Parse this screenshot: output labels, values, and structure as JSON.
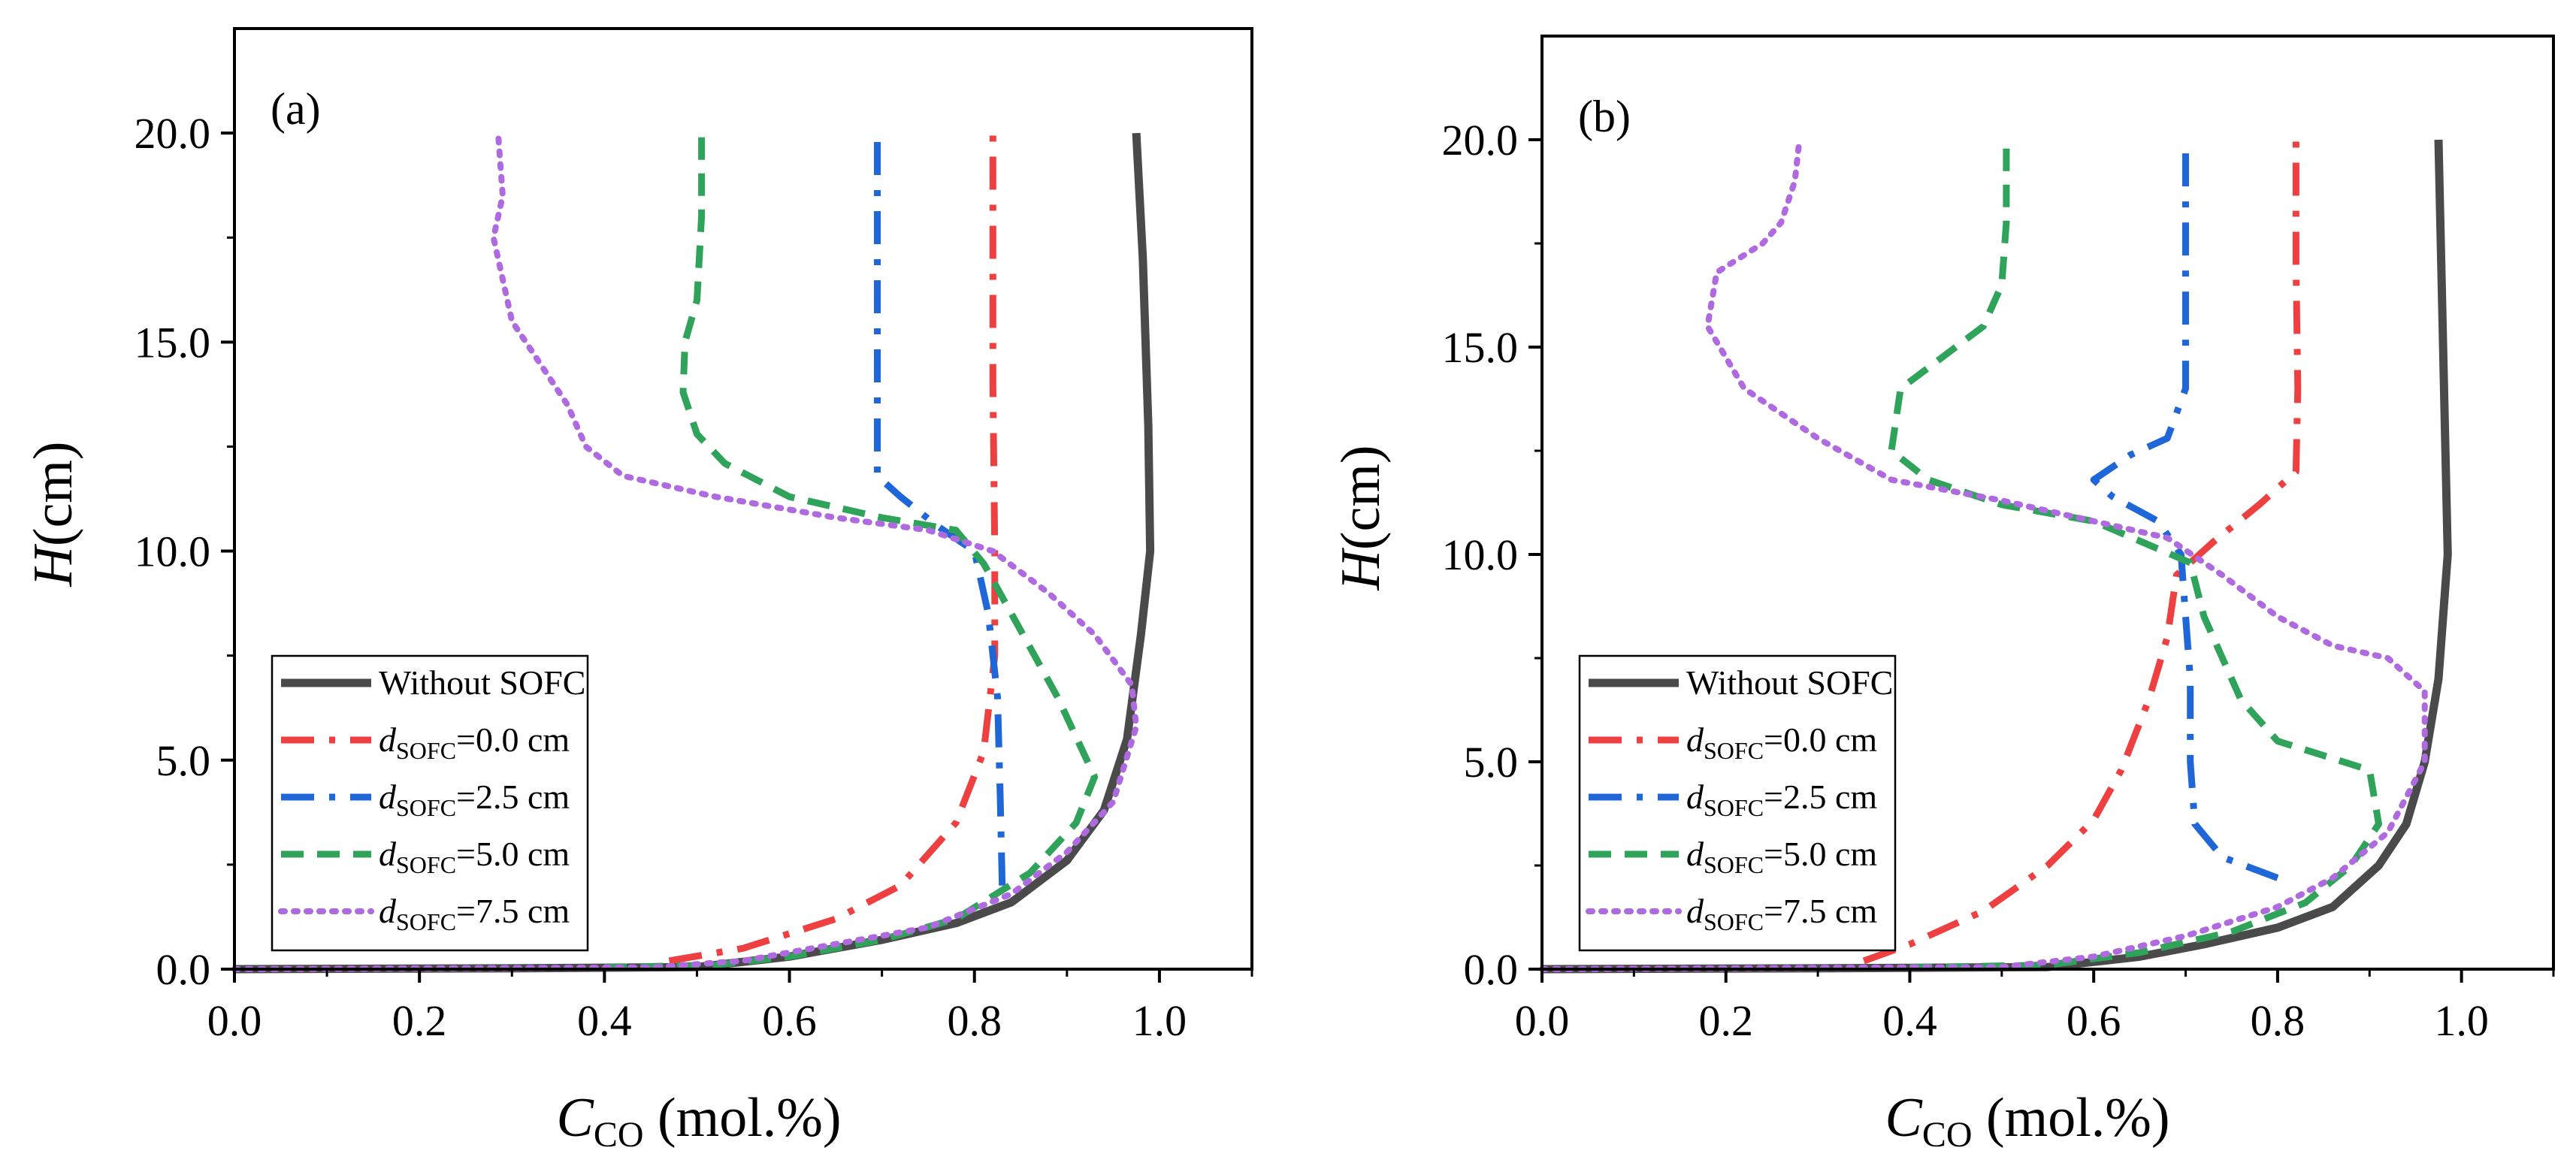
{
  "figure": {
    "colors": {
      "without": "#4a4a4a",
      "d0": "#ee4040",
      "d25": "#1f67d8",
      "d50": "#2fa35a",
      "d75": "#b06ae0"
    }
  },
  "chart_data": [
    {
      "type": "line",
      "panel_label": "(a)",
      "xlabel_main": "C",
      "xlabel_sub": "CO",
      "xlabel_unit": " (mol.%)",
      "ylabel_main": "H",
      "ylabel_unit": "(cm)",
      "xlim": [
        0,
        1.1
      ],
      "ylim": [
        0,
        22.5
      ],
      "xticks": [
        "0.0",
        "0.2",
        "0.4",
        "0.6",
        "0.8",
        "1.0"
      ],
      "yticks": [
        "0.0",
        "5.0",
        "10.0",
        "15.0",
        "20.0"
      ],
      "legend": [
        {
          "key": "without",
          "style": "solid",
          "text": "Without SOFC"
        },
        {
          "key": "d0",
          "style": "dashdot",
          "pre": "d",
          "sub": "SOFC",
          "post": "=0.0 cm"
        },
        {
          "key": "d25",
          "style": "dashdot",
          "pre": "d",
          "sub": "SOFC",
          "post": "=2.5 cm"
        },
        {
          "key": "d50",
          "style": "dash",
          "pre": "d",
          "sub": "SOFC",
          "post": "=5.0 cm"
        },
        {
          "key": "d75",
          "style": "dot",
          "pre": "d",
          "sub": "SOFC",
          "post": "=7.5 cm"
        }
      ],
      "series": [
        {
          "key": "without",
          "style": "solid",
          "name": "Without SOFC",
          "points": [
            [
              0,
              0
            ],
            [
              0.3,
              0.02
            ],
            [
              0.5,
              0.05
            ],
            [
              0.6,
              0.3
            ],
            [
              0.7,
              0.7
            ],
            [
              0.78,
              1.1
            ],
            [
              0.84,
              1.6
            ],
            [
              0.9,
              2.6
            ],
            [
              0.94,
              3.8
            ],
            [
              0.965,
              5.5
            ],
            [
              0.98,
              8
            ],
            [
              0.99,
              10
            ],
            [
              0.988,
              13
            ],
            [
              0.982,
              17
            ],
            [
              0.975,
              20
            ]
          ]
        },
        {
          "key": "d0",
          "style": "dashdot",
          "name": "d_SOFC=0.0 cm",
          "points": [
            [
              0.47,
              0.2
            ],
            [
              0.55,
              0.5
            ],
            [
              0.65,
              1.2
            ],
            [
              0.72,
              2
            ],
            [
              0.78,
              3.5
            ],
            [
              0.81,
              5.2
            ],
            [
              0.822,
              7.5
            ],
            [
              0.822,
              10
            ],
            [
              0.82,
              14
            ],
            [
              0.82,
              17
            ],
            [
              0.82,
              20
            ]
          ]
        },
        {
          "key": "d25",
          "style": "dashdot",
          "name": "d_SOFC=2.5 cm",
          "points": [
            [
              0.83,
              2
            ],
            [
              0.828,
              4
            ],
            [
              0.825,
              6.5
            ],
            [
              0.815,
              8.5
            ],
            [
              0.8,
              10
            ],
            [
              0.76,
              10.6
            ],
            [
              0.72,
              11.3
            ],
            [
              0.695,
              11.8
            ],
            [
              0.695,
              14
            ],
            [
              0.695,
              17
            ],
            [
              0.695,
              20
            ]
          ]
        },
        {
          "key": "d50",
          "style": "dash",
          "name": "d_SOFC=5.0 cm",
          "points": [
            [
              0.4,
              0.04
            ],
            [
              0.52,
              0.1
            ],
            [
              0.6,
              0.3
            ],
            [
              0.7,
              0.7
            ],
            [
              0.78,
              1.2
            ],
            [
              0.86,
              2.3
            ],
            [
              0.91,
              3.5
            ],
            [
              0.93,
              4.6
            ],
            [
              0.89,
              6.5
            ],
            [
              0.84,
              8.5
            ],
            [
              0.81,
              9.7
            ],
            [
              0.78,
              10.5
            ],
            [
              0.7,
              10.8
            ],
            [
              0.6,
              11.3
            ],
            [
              0.53,
              12.1
            ],
            [
              0.5,
              12.8
            ],
            [
              0.485,
              13.8
            ],
            [
              0.487,
              15
            ],
            [
              0.5,
              16
            ],
            [
              0.505,
              18
            ],
            [
              0.505,
              20
            ]
          ]
        },
        {
          "key": "d75",
          "style": "dot",
          "name": "d_SOFC=7.5 cm",
          "points": [
            [
              0,
              0
            ],
            [
              0.45,
              0.04
            ],
            [
              0.55,
              0.2
            ],
            [
              0.65,
              0.6
            ],
            [
              0.75,
              1
            ],
            [
              0.84,
              1.8
            ],
            [
              0.9,
              2.8
            ],
            [
              0.95,
              4
            ],
            [
              0.975,
              5.8
            ],
            [
              0.97,
              6.8
            ],
            [
              0.93,
              8
            ],
            [
              0.88,
              9
            ],
            [
              0.82,
              10
            ],
            [
              0.75,
              10.5
            ],
            [
              0.65,
              10.8
            ],
            [
              0.52,
              11.3
            ],
            [
              0.42,
              11.8
            ],
            [
              0.38,
              12.5
            ],
            [
              0.36,
              13.5
            ],
            [
              0.33,
              14.5
            ],
            [
              0.3,
              15.5
            ],
            [
              0.29,
              16.5
            ],
            [
              0.28,
              17.5
            ],
            [
              0.29,
              18.5
            ],
            [
              0.285,
              20
            ]
          ]
        }
      ]
    },
    {
      "type": "line",
      "panel_label": "(b)",
      "xlabel_main": "C",
      "xlabel_sub": "CO",
      "xlabel_unit": " (mol.%)",
      "ylabel_main": "H",
      "ylabel_unit": "(cm)",
      "xlim": [
        0,
        1.1
      ],
      "ylim": [
        0,
        22.5
      ],
      "xticks": [
        "0.0",
        "0.2",
        "0.4",
        "0.6",
        "0.8",
        "1.0"
      ],
      "yticks": [
        "0.0",
        "5.0",
        "10.0",
        "15.0",
        "20.0"
      ],
      "legend": [
        {
          "key": "without",
          "style": "solid",
          "text": "Without SOFC"
        },
        {
          "key": "d0",
          "style": "dashdot",
          "pre": "d",
          "sub": "SOFC",
          "post": "=0.0 cm"
        },
        {
          "key": "d25",
          "style": "dashdot",
          "pre": "d",
          "sub": "SOFC",
          "post": "=2.5 cm"
        },
        {
          "key": "d50",
          "style": "dash",
          "pre": "d",
          "sub": "SOFC",
          "post": "=5.0 cm"
        },
        {
          "key": "d75",
          "style": "dot",
          "pre": "d",
          "sub": "SOFC",
          "post": "=7.5 cm"
        }
      ],
      "series": [
        {
          "key": "without",
          "style": "solid",
          "name": "Without SOFC",
          "points": [
            [
              0,
              0
            ],
            [
              0.3,
              0.02
            ],
            [
              0.55,
              0.05
            ],
            [
              0.65,
              0.3
            ],
            [
              0.72,
              0.6
            ],
            [
              0.8,
              1
            ],
            [
              0.86,
              1.5
            ],
            [
              0.91,
              2.5
            ],
            [
              0.94,
              3.5
            ],
            [
              0.96,
              5
            ],
            [
              0.975,
              7
            ],
            [
              0.985,
              10
            ],
            [
              0.982,
              13
            ],
            [
              0.978,
              17
            ],
            [
              0.975,
              20
            ]
          ]
        },
        {
          "key": "d0",
          "style": "dashdot",
          "name": "d_SOFC=0.0 cm",
          "points": [
            [
              0.35,
              0.2
            ],
            [
              0.4,
              0.6
            ],
            [
              0.48,
              1.4
            ],
            [
              0.55,
              2.5
            ],
            [
              0.6,
              3.6
            ],
            [
              0.63,
              4.8
            ],
            [
              0.66,
              6.5
            ],
            [
              0.68,
              8
            ],
            [
              0.69,
              9.5
            ],
            [
              0.73,
              10.3
            ],
            [
              0.78,
              11.2
            ],
            [
              0.82,
              12
            ],
            [
              0.822,
              14
            ],
            [
              0.82,
              17
            ],
            [
              0.82,
              20
            ]
          ]
        },
        {
          "key": "d25",
          "style": "dashdot",
          "name": "d_SOFC=2.5 cm",
          "points": [
            [
              0.8,
              2.2
            ],
            [
              0.74,
              2.7
            ],
            [
              0.71,
              3.5
            ],
            [
              0.705,
              5
            ],
            [
              0.705,
              7
            ],
            [
              0.7,
              8.5
            ],
            [
              0.695,
              10
            ],
            [
              0.67,
              10.8
            ],
            [
              0.62,
              11.4
            ],
            [
              0.6,
              11.8
            ],
            [
              0.64,
              12.4
            ],
            [
              0.68,
              12.8
            ],
            [
              0.7,
              14
            ],
            [
              0.7,
              17
            ],
            [
              0.7,
              20
            ]
          ]
        },
        {
          "key": "d50",
          "style": "dash",
          "name": "d_SOFC=5.0 cm",
          "points": [
            [
              0.4,
              0.04
            ],
            [
              0.55,
              0.1
            ],
            [
              0.65,
              0.4
            ],
            [
              0.75,
              0.9
            ],
            [
              0.83,
              1.6
            ],
            [
              0.88,
              2.5
            ],
            [
              0.91,
              3.5
            ],
            [
              0.9,
              4.8
            ],
            [
              0.8,
              5.5
            ],
            [
              0.76,
              6.5
            ],
            [
              0.72,
              8.5
            ],
            [
              0.705,
              9.8
            ],
            [
              0.6,
              10.8
            ],
            [
              0.5,
              11.2
            ],
            [
              0.42,
              11.8
            ],
            [
              0.38,
              12.5
            ],
            [
              0.39,
              14
            ],
            [
              0.45,
              15
            ],
            [
              0.48,
              15.5
            ],
            [
              0.5,
              16.5
            ],
            [
              0.505,
              18
            ],
            [
              0.505,
              20
            ]
          ]
        },
        {
          "key": "d75",
          "style": "dot",
          "name": "d_SOFC=7.5 cm",
          "points": [
            [
              0,
              0
            ],
            [
              0.5,
              0.05
            ],
            [
              0.6,
              0.3
            ],
            [
              0.7,
              0.8
            ],
            [
              0.8,
              1.5
            ],
            [
              0.86,
              2.2
            ],
            [
              0.92,
              3.3
            ],
            [
              0.96,
              5
            ],
            [
              0.96,
              6.7
            ],
            [
              0.92,
              7.5
            ],
            [
              0.86,
              7.8
            ],
            [
              0.8,
              8.5
            ],
            [
              0.74,
              9.5
            ],
            [
              0.68,
              10.4
            ],
            [
              0.6,
              10.8
            ],
            [
              0.5,
              11.3
            ],
            [
              0.38,
              11.8
            ],
            [
              0.3,
              12.8
            ],
            [
              0.22,
              14
            ],
            [
              0.18,
              15.5
            ],
            [
              0.19,
              16.8
            ],
            [
              0.24,
              17.5
            ],
            [
              0.26,
              18
            ],
            [
              0.275,
              19
            ],
            [
              0.28,
              20
            ]
          ]
        }
      ]
    }
  ]
}
